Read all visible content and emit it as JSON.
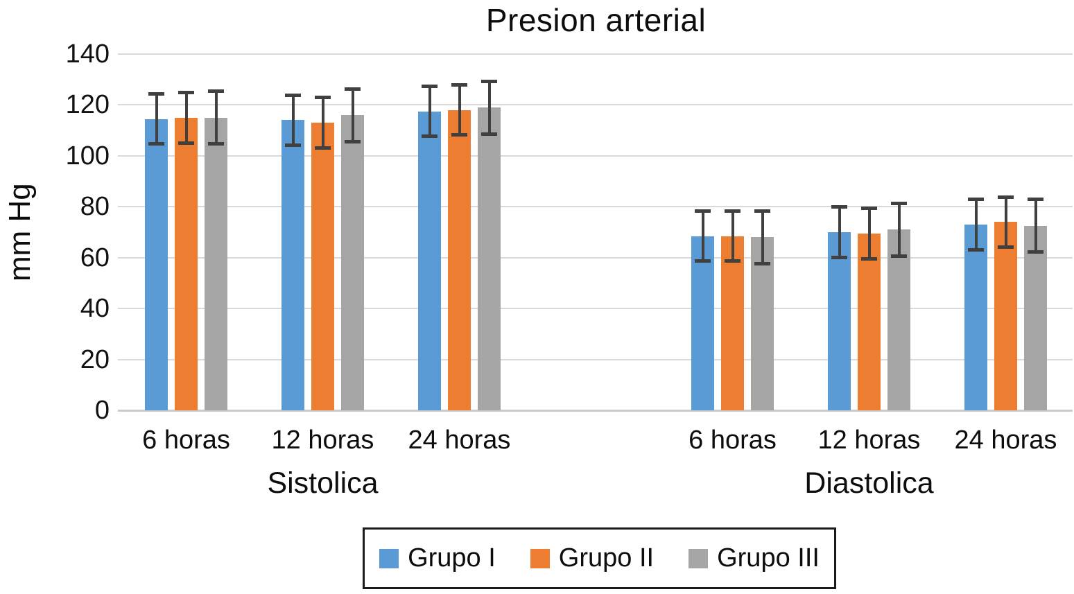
{
  "chart_data": {
    "type": "bar",
    "title": "Presion arterial",
    "ylabel": "mm Hg",
    "xlabel": "",
    "ylim": [
      0,
      140
    ],
    "yticks": [
      0,
      20,
      40,
      60,
      80,
      100,
      120,
      140
    ],
    "grid": true,
    "legend_position": "bottom",
    "group_labels": [
      "Sistolica",
      "Diastolica"
    ],
    "categories": [
      "6 horas",
      "12 horas",
      "24 horas",
      "6 horas",
      "12 horas",
      "24 horas"
    ],
    "series": [
      {
        "name": "Grupo I",
        "color": "#5B9BD5",
        "values": [
          114.5,
          114,
          117.5,
          68.5,
          70,
          73
        ],
        "errors": [
          10,
          10,
          10,
          10,
          10,
          10
        ]
      },
      {
        "name": "Grupo II",
        "color": "#ED7D31",
        "values": [
          115,
          113,
          118,
          68.5,
          69.5,
          74
        ],
        "errors": [
          10,
          10,
          10,
          10,
          10,
          10
        ]
      },
      {
        "name": "Grupo III",
        "color": "#A5A5A5",
        "values": [
          115,
          116,
          119,
          68,
          71,
          72.5
        ],
        "errors": [
          10.5,
          10.5,
          10.5,
          10.5,
          10.5,
          10.5
        ]
      }
    ],
    "colors": {
      "gridline": "#D9D9D9",
      "axis_line": "#CCCACA",
      "error_bar": "#404040",
      "text": "#0d0d0d",
      "background": "#FFFFFF"
    }
  }
}
